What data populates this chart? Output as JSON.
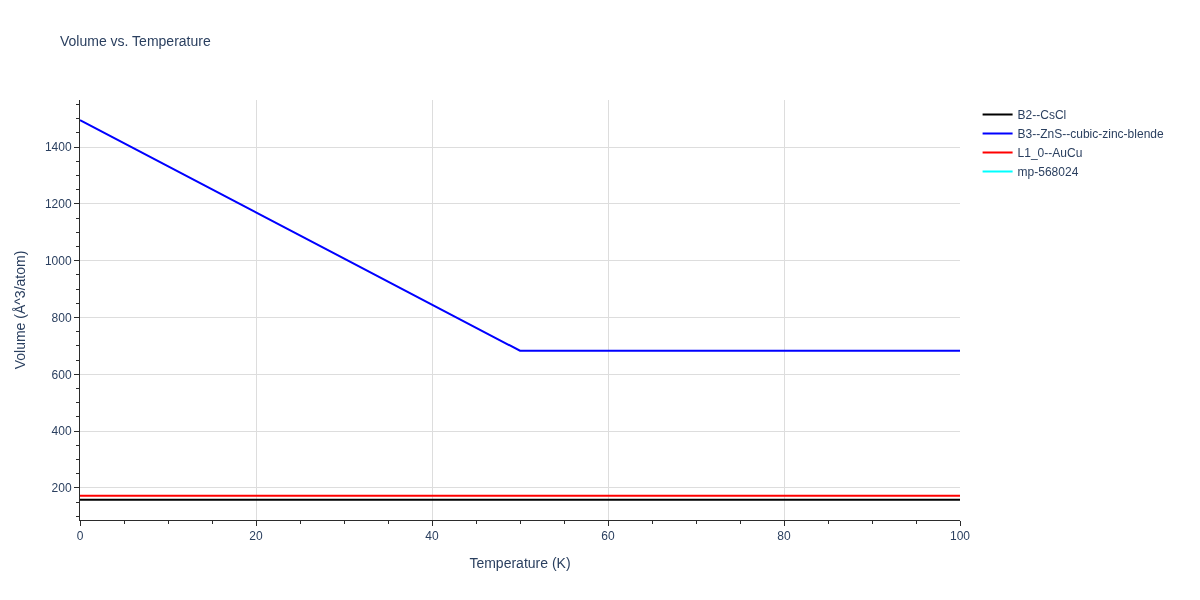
{
  "chart_data": {
    "type": "line",
    "title": "Volume vs. Temperature",
    "xlabel": "Temperature (K)",
    "ylabel": "Volume (Å^3/atom)",
    "x": [
      0,
      50,
      100
    ],
    "series": [
      {
        "name": "B2--CsCl",
        "color": "#000000",
        "values": [
          158,
          158,
          158
        ]
      },
      {
        "name": "B3--ZnS--cubic-zinc-blende",
        "color": "#0000ff",
        "values": [
          1495,
          683,
          683
        ]
      },
      {
        "name": "L1_0--AuCu",
        "color": "#ff0000",
        "values": [
          172,
          172,
          172
        ]
      },
      {
        "name": "mp-568024",
        "color": "#00ffff",
        "values": [
          null,
          null,
          null
        ]
      }
    ],
    "xlim": [
      0,
      100
    ],
    "xticks": [
      0,
      20,
      40,
      60,
      80,
      100
    ],
    "ylim": [
      87,
      1566
    ],
    "yticks": [
      200,
      400,
      600,
      800,
      1000,
      1200,
      1400
    ],
    "grid": true,
    "legend": "top right",
    "marker": "none",
    "line_style": "solid"
  }
}
